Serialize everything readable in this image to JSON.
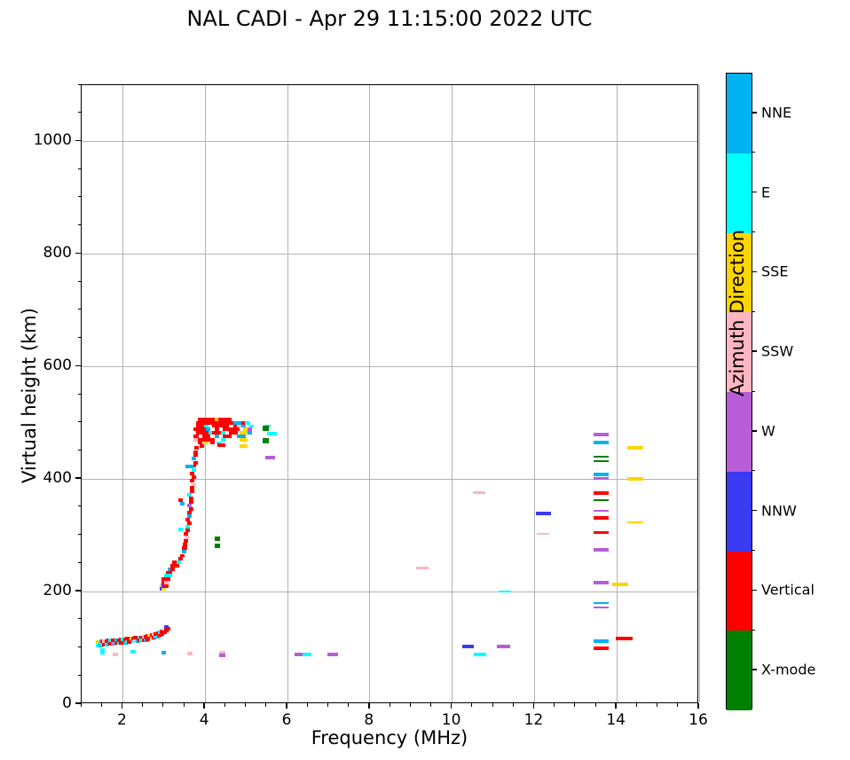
{
  "chart_data": {
    "type": "scatter",
    "title": "NAL CADI - Apr 29 11:15:00 2022 UTC",
    "xlabel": "Frequency (MHz)",
    "ylabel": "Virtual height (km)",
    "xlim": [
      1,
      16
    ],
    "ylim": [
      0,
      1100
    ],
    "xticks": [
      2,
      4,
      6,
      8,
      10,
      12,
      14,
      16
    ],
    "yticks": [
      0,
      200,
      400,
      600,
      800,
      1000
    ],
    "x_minor_step": 0.5,
    "y_minor_step": 50,
    "grid": true,
    "legend": {
      "label": "Azimuth Direction",
      "position": "right-colorbar",
      "entries": [
        {
          "key": "NNE",
          "label": "NNE",
          "color": "#00b2f0"
        },
        {
          "key": "E",
          "label": "E",
          "color": "#00ffff"
        },
        {
          "key": "SSE",
          "label": "SSE",
          "color": "#ffd500"
        },
        {
          "key": "SSW",
          "label": "SSW",
          "color": "#ffb6c1"
        },
        {
          "key": "W",
          "label": "W",
          "color": "#b85cd8"
        },
        {
          "key": "NNW",
          "label": "NNW",
          "color": "#3a3af0"
        },
        {
          "key": "V",
          "label": "Vertical",
          "color": "#ff0000"
        },
        {
          "key": "X",
          "label": "X-mode",
          "color": "#008000"
        }
      ]
    },
    "point_format": "[freq_MHz, virtual_height_km, direction_key, width_MHz(optional, default 0.11), thickness_km(optional, default 6)]",
    "points": [
      [
        1.41,
        110,
        "SSE"
      ],
      [
        1.41,
        104,
        "E"
      ],
      [
        1.46,
        110,
        "E"
      ],
      [
        1.46,
        104,
        "NNE"
      ],
      [
        1.51,
        112,
        "V"
      ],
      [
        1.51,
        106,
        "E"
      ],
      [
        1.56,
        112,
        "SSW"
      ],
      [
        1.56,
        106,
        "V"
      ],
      [
        1.61,
        112,
        "V"
      ],
      [
        1.61,
        106,
        "E"
      ],
      [
        1.66,
        113,
        "V"
      ],
      [
        1.66,
        107,
        "NNE"
      ],
      [
        1.71,
        113,
        "E"
      ],
      [
        1.71,
        107,
        "V"
      ],
      [
        1.76,
        113,
        "V"
      ],
      [
        1.76,
        107,
        "W"
      ],
      [
        1.81,
        114,
        "V"
      ],
      [
        1.81,
        108,
        "E"
      ],
      [
        1.86,
        114,
        "NNE"
      ],
      [
        1.86,
        108,
        "V"
      ],
      [
        1.91,
        114,
        "V"
      ],
      [
        1.91,
        108,
        "E"
      ],
      [
        1.96,
        115,
        "V"
      ],
      [
        1.96,
        109,
        "V"
      ],
      [
        2.01,
        115,
        "E"
      ],
      [
        2.01,
        109,
        "V"
      ],
      [
        2.06,
        115,
        "V"
      ],
      [
        2.06,
        109,
        "NNE"
      ],
      [
        2.11,
        116,
        "V"
      ],
      [
        2.11,
        110,
        "E"
      ],
      [
        2.16,
        116,
        "V"
      ],
      [
        2.16,
        110,
        "V"
      ],
      [
        2.21,
        117,
        "SSE"
      ],
      [
        2.21,
        111,
        "V"
      ],
      [
        2.26,
        117,
        "V"
      ],
      [
        2.26,
        111,
        "E"
      ],
      [
        2.31,
        118,
        "V"
      ],
      [
        2.31,
        112,
        "SSW"
      ],
      [
        2.36,
        118,
        "V"
      ],
      [
        2.36,
        112,
        "NNE"
      ],
      [
        2.41,
        119,
        "E"
      ],
      [
        2.41,
        113,
        "V"
      ],
      [
        2.46,
        119,
        "V"
      ],
      [
        2.46,
        113,
        "E"
      ],
      [
        2.51,
        120,
        "SSW"
      ],
      [
        2.51,
        114,
        "V"
      ],
      [
        2.56,
        120,
        "V"
      ],
      [
        2.56,
        114,
        "NNE"
      ],
      [
        2.61,
        121,
        "V"
      ],
      [
        2.61,
        115,
        "V"
      ],
      [
        2.66,
        122,
        "SSE"
      ],
      [
        2.66,
        116,
        "V"
      ],
      [
        2.71,
        123,
        "V"
      ],
      [
        2.71,
        117,
        "SSW"
      ],
      [
        2.76,
        124,
        "SSW"
      ],
      [
        2.76,
        118,
        "V"
      ],
      [
        2.81,
        125,
        "V"
      ],
      [
        2.81,
        119,
        "E"
      ],
      [
        2.86,
        126,
        "V"
      ],
      [
        2.86,
        120,
        "NNE"
      ],
      [
        2.91,
        128,
        "E"
      ],
      [
        2.91,
        122,
        "V"
      ],
      [
        2.96,
        130,
        "V"
      ],
      [
        2.96,
        124,
        "V"
      ],
      [
        3.01,
        133,
        "SSW"
      ],
      [
        3.01,
        127,
        "V"
      ],
      [
        3.06,
        137,
        "NNW"
      ],
      [
        3.06,
        131,
        "V"
      ],
      [
        3.11,
        134,
        "V"
      ],
      [
        1.5,
        97,
        "E"
      ],
      [
        1.5,
        91,
        "E"
      ],
      [
        1.82,
        88,
        "SSW"
      ],
      [
        2.25,
        93,
        "E"
      ],
      [
        2.99,
        91,
        "NNE"
      ],
      [
        3.63,
        90,
        "SSW"
      ],
      [
        4.42,
        92,
        "SSW",
        0.15
      ],
      [
        4.42,
        87,
        "W",
        0.15
      ],
      [
        6.28,
        88,
        "W",
        0.2
      ],
      [
        6.48,
        88,
        "E",
        0.22
      ],
      [
        7.1,
        88,
        "W",
        0.25
      ],
      [
        2.95,
        211,
        "SSW"
      ],
      [
        2.95,
        205,
        "NNW"
      ],
      [
        3.0,
        222,
        "V"
      ],
      [
        3.0,
        216,
        "V"
      ],
      [
        3.0,
        210,
        "NNW"
      ],
      [
        3.0,
        204,
        "SSE"
      ],
      [
        3.05,
        228,
        "E"
      ],
      [
        3.05,
        222,
        "V"
      ],
      [
        3.05,
        216,
        "SSW"
      ],
      [
        3.05,
        210,
        "V"
      ],
      [
        3.1,
        234,
        "V"
      ],
      [
        3.1,
        228,
        "E"
      ],
      [
        3.1,
        222,
        "V"
      ],
      [
        3.15,
        240,
        "NNE"
      ],
      [
        3.15,
        234,
        "V"
      ],
      [
        3.15,
        228,
        "E"
      ],
      [
        3.2,
        246,
        "V"
      ],
      [
        3.2,
        240,
        "V"
      ],
      [
        3.25,
        252,
        "V"
      ],
      [
        3.32,
        246,
        "V"
      ],
      [
        3.36,
        252,
        "E"
      ],
      [
        3.4,
        258,
        "V"
      ],
      [
        3.44,
        264,
        "V"
      ],
      [
        3.48,
        271,
        "NNE"
      ],
      [
        3.5,
        277,
        "V"
      ],
      [
        3.52,
        284,
        "V"
      ],
      [
        3.54,
        290,
        "V"
      ],
      [
        3.56,
        296,
        "SSW"
      ],
      [
        3.54,
        303,
        "V"
      ],
      [
        3.58,
        309,
        "V"
      ],
      [
        3.58,
        315,
        "E"
      ],
      [
        3.62,
        321,
        "V"
      ],
      [
        3.58,
        328,
        "V"
      ],
      [
        3.62,
        334,
        "NNE"
      ],
      [
        3.62,
        340,
        "V"
      ],
      [
        3.66,
        347,
        "V"
      ],
      [
        3.62,
        353,
        "W"
      ],
      [
        3.66,
        359,
        "V"
      ],
      [
        3.66,
        365,
        "V"
      ],
      [
        3.62,
        372,
        "E"
      ],
      [
        3.68,
        378,
        "V"
      ],
      [
        3.68,
        384,
        "V"
      ],
      [
        3.72,
        390,
        "SSW"
      ],
      [
        3.68,
        397,
        "V"
      ],
      [
        3.72,
        403,
        "V"
      ],
      [
        3.68,
        410,
        "V"
      ],
      [
        3.72,
        416,
        "E"
      ],
      [
        3.72,
        423,
        "V"
      ],
      [
        3.76,
        429,
        "V"
      ],
      [
        3.72,
        436,
        "NNE"
      ],
      [
        3.76,
        442,
        "V"
      ],
      [
        3.76,
        448,
        "V"
      ],
      [
        3.8,
        455,
        "V"
      ],
      [
        3.4,
        310,
        "E"
      ],
      [
        3.44,
        356,
        "NNE"
      ],
      [
        3.4,
        362,
        "V"
      ],
      [
        3.62,
        422,
        "NNE",
        0.2
      ],
      [
        4.3,
        294,
        "X",
        0.13,
        9
      ],
      [
        4.3,
        281,
        "X",
        0.13,
        7
      ],
      [
        3.88,
        506,
        "V"
      ],
      [
        3.98,
        506,
        "V"
      ],
      [
        4.08,
        506,
        "V"
      ],
      [
        4.18,
        506,
        "V"
      ],
      [
        4.28,
        506,
        "SSE"
      ],
      [
        4.38,
        506,
        "V"
      ],
      [
        4.48,
        506,
        "V"
      ],
      [
        4.58,
        506,
        "V"
      ],
      [
        3.83,
        500,
        "V"
      ],
      [
        3.93,
        500,
        "V"
      ],
      [
        4.03,
        500,
        "V"
      ],
      [
        4.13,
        500,
        "V"
      ],
      [
        4.23,
        500,
        "V"
      ],
      [
        4.33,
        500,
        "V"
      ],
      [
        4.43,
        500,
        "V"
      ],
      [
        4.53,
        500,
        "V"
      ],
      [
        4.63,
        500,
        "V"
      ],
      [
        4.73,
        500,
        "NNE"
      ],
      [
        4.83,
        500,
        "NNE"
      ],
      [
        4.93,
        500,
        "V"
      ],
      [
        5.03,
        500,
        "E"
      ],
      [
        3.83,
        494,
        "V"
      ],
      [
        3.93,
        494,
        "V"
      ],
      [
        4.03,
        494,
        "E"
      ],
      [
        4.23,
        494,
        "V"
      ],
      [
        4.33,
        494,
        "V"
      ],
      [
        4.43,
        494,
        "V"
      ],
      [
        4.53,
        494,
        "V"
      ],
      [
        4.73,
        494,
        "V"
      ],
      [
        4.83,
        494,
        "SSW"
      ],
      [
        4.93,
        494,
        "NNE"
      ],
      [
        5.13,
        494,
        "E"
      ],
      [
        5.52,
        494,
        "E",
        0.15
      ],
      [
        3.78,
        488,
        "V"
      ],
      [
        3.88,
        488,
        "V"
      ],
      [
        3.98,
        488,
        "V"
      ],
      [
        4.08,
        488,
        "NNE"
      ],
      [
        4.28,
        488,
        "V"
      ],
      [
        4.48,
        488,
        "V"
      ],
      [
        4.58,
        488,
        "V"
      ],
      [
        4.68,
        488,
        "V"
      ],
      [
        4.78,
        488,
        "V"
      ],
      [
        4.98,
        488,
        "SSE"
      ],
      [
        5.08,
        488,
        "W"
      ],
      [
        3.83,
        482,
        "V"
      ],
      [
        3.93,
        482,
        "V"
      ],
      [
        4.03,
        482,
        "V"
      ],
      [
        4.13,
        482,
        "E"
      ],
      [
        4.23,
        482,
        "V"
      ],
      [
        4.33,
        482,
        "V"
      ],
      [
        4.43,
        482,
        "E"
      ],
      [
        4.63,
        482,
        "V"
      ],
      [
        4.73,
        482,
        "V"
      ],
      [
        4.93,
        482,
        "SSE",
        0.2
      ],
      [
        5.08,
        482,
        "NNE"
      ],
      [
        3.78,
        476,
        "V"
      ],
      [
        3.98,
        476,
        "V"
      ],
      [
        4.08,
        476,
        "V"
      ],
      [
        4.28,
        476,
        "NNE"
      ],
      [
        4.48,
        476,
        "V"
      ],
      [
        4.58,
        476,
        "V"
      ],
      [
        4.88,
        476,
        "NNE",
        0.2
      ],
      [
        3.78,
        470,
        "SSW"
      ],
      [
        3.88,
        470,
        "V"
      ],
      [
        3.98,
        470,
        "V"
      ],
      [
        4.08,
        470,
        "V"
      ],
      [
        4.18,
        470,
        "V"
      ],
      [
        4.43,
        470,
        "E"
      ],
      [
        4.93,
        470,
        "SSE",
        0.2
      ],
      [
        3.88,
        464,
        "V"
      ],
      [
        4.03,
        464,
        "SSE"
      ],
      [
        4.18,
        464,
        "V"
      ],
      [
        4.33,
        464,
        "E"
      ],
      [
        3.93,
        458,
        "V"
      ],
      [
        4.4,
        460,
        "V",
        0.2
      ],
      [
        4.93,
        458,
        "SSE",
        0.2
      ],
      [
        5.47,
        490,
        "X",
        0.14,
        10
      ],
      [
        5.47,
        468,
        "X",
        0.14,
        8
      ],
      [
        5.62,
        481,
        "E",
        0.25
      ],
      [
        5.58,
        438,
        "W",
        0.22
      ],
      [
        9.28,
        242,
        "SSW",
        0.3
      ],
      [
        10.65,
        376,
        "SSW",
        0.3
      ],
      [
        12.22,
        339,
        "NNW",
        0.35
      ],
      [
        12.2,
        302,
        "SSW",
        0.3,
        3
      ],
      [
        11.28,
        200,
        "E",
        0.3,
        3
      ],
      [
        11.25,
        102,
        "W",
        0.32
      ],
      [
        10.38,
        102,
        "NNW",
        0.28
      ],
      [
        10.68,
        88,
        "E",
        0.3
      ],
      [
        13.62,
        479,
        "W",
        0.35
      ],
      [
        13.62,
        465,
        "NNE",
        0.35
      ],
      [
        13.62,
        440,
        "X",
        0.35,
        4
      ],
      [
        13.62,
        432,
        "X",
        0.35,
        4
      ],
      [
        13.62,
        408,
        "NNE",
        0.35
      ],
      [
        13.62,
        401,
        "W",
        0.35
      ],
      [
        13.62,
        375,
        "V",
        0.35
      ],
      [
        13.62,
        362,
        "X",
        0.35,
        3
      ],
      [
        13.62,
        343,
        "W",
        0.35,
        3
      ],
      [
        13.62,
        331,
        "V",
        0.35
      ],
      [
        13.62,
        305,
        "V",
        0.35
      ],
      [
        13.62,
        274,
        "W",
        0.35
      ],
      [
        13.62,
        216,
        "W",
        0.35
      ],
      [
        13.62,
        180,
        "NNE",
        0.35,
        4
      ],
      [
        13.62,
        172,
        "W",
        0.35,
        4
      ],
      [
        14.45,
        455,
        "SSE",
        0.4
      ],
      [
        14.45,
        400,
        "SSE",
        0.4
      ],
      [
        14.45,
        323,
        "SSE",
        0.4,
        3
      ],
      [
        14.08,
        213,
        "SSE",
        0.4
      ],
      [
        13.62,
        112,
        "NNE",
        0.35
      ],
      [
        14.18,
        116,
        "V",
        0.4
      ],
      [
        13.62,
        99,
        "V",
        0.35
      ]
    ]
  }
}
